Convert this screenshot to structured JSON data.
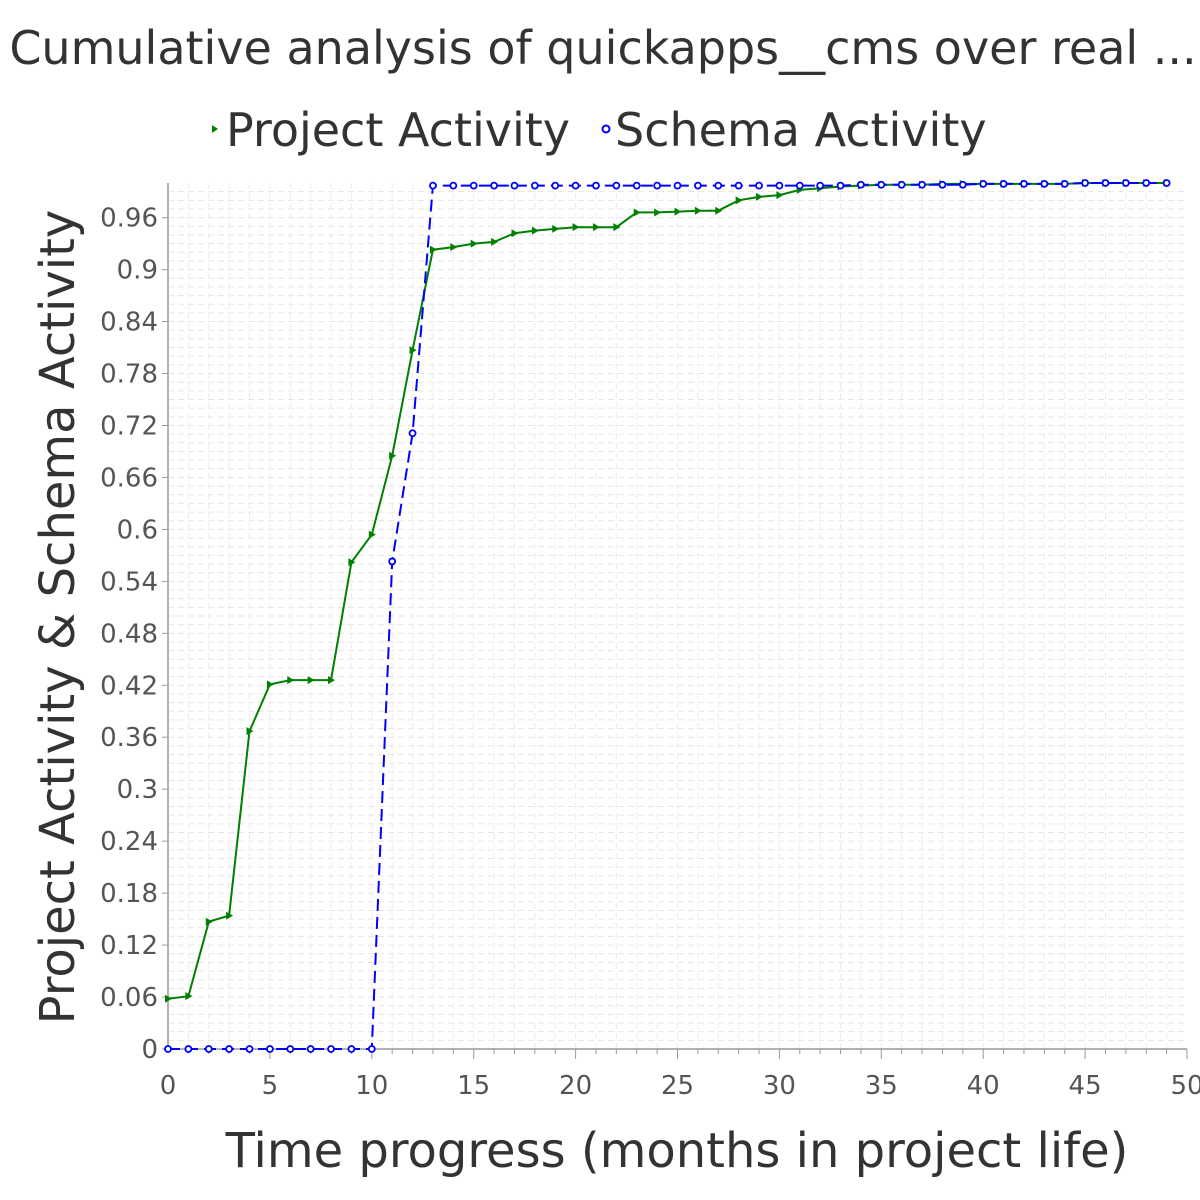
{
  "chart_data": {
    "type": "line",
    "title": "Cumulative analysis of quickapps__cms over real ...",
    "xlabel": "Time progress (months in project life)",
    "ylabel": "Project Activity & Schema Activity",
    "xlim": [
      0,
      50
    ],
    "ylim": [
      0,
      1.0
    ],
    "x_ticks": [
      "0",
      "5",
      "10",
      "15",
      "20",
      "25",
      "30",
      "35",
      "40",
      "45",
      "50"
    ],
    "y_ticks": [
      "0",
      "0.06",
      "0.12",
      "0.18",
      "0.24",
      "0.3",
      "0.36",
      "0.42",
      "0.48",
      "0.54",
      "0.6",
      "0.66",
      "0.72",
      "0.78",
      "0.84",
      "0.9",
      "0.96"
    ],
    "grid": true,
    "legend_position": "top",
    "series": [
      {
        "name": "Project Activity",
        "color": "#008000",
        "marker": "triangle-right",
        "line_style": "solid",
        "x": [
          0,
          1,
          2,
          3,
          4,
          5,
          6,
          7,
          8,
          9,
          10,
          11,
          12,
          13,
          14,
          15,
          16,
          17,
          18,
          19,
          20,
          21,
          22,
          23,
          24,
          25,
          26,
          27,
          28,
          29,
          30,
          31,
          32,
          33,
          34,
          35,
          36,
          37,
          38,
          39,
          40,
          41,
          42,
          43,
          44,
          45,
          46,
          47,
          48,
          49
        ],
        "y": [
          0.058,
          0.061,
          0.147,
          0.154,
          0.367,
          0.421,
          0.426,
          0.426,
          0.426,
          0.562,
          0.594,
          0.685,
          0.807,
          0.923,
          0.926,
          0.93,
          0.932,
          0.942,
          0.945,
          0.947,
          0.949,
          0.949,
          0.949,
          0.966,
          0.966,
          0.967,
          0.968,
          0.968,
          0.98,
          0.984,
          0.986,
          0.992,
          0.994,
          0.996,
          0.997,
          0.998,
          0.998,
          0.998,
          0.999,
          0.999,
          0.999,
          0.999,
          0.999,
          0.999,
          0.999,
          1.0,
          1.0,
          1.0,
          1.0,
          1.0
        ]
      },
      {
        "name": "Schema Activity",
        "color": "#0000ff",
        "marker": "circle",
        "line_style": "dashed",
        "x": [
          0,
          1,
          2,
          3,
          4,
          5,
          6,
          7,
          8,
          9,
          10,
          11,
          12,
          13,
          14,
          15,
          16,
          17,
          18,
          19,
          20,
          21,
          22,
          23,
          24,
          25,
          26,
          27,
          28,
          29,
          30,
          31,
          32,
          33,
          34,
          35,
          36,
          37,
          38,
          39,
          40,
          41,
          42,
          43,
          44,
          45,
          46,
          47,
          48,
          49
        ],
        "y": [
          0,
          0,
          0,
          0,
          0,
          0,
          0,
          0,
          0,
          0,
          0,
          0.563,
          0.711,
          0.997,
          0.997,
          0.997,
          0.997,
          0.997,
          0.997,
          0.997,
          0.997,
          0.997,
          0.997,
          0.997,
          0.997,
          0.997,
          0.997,
          0.997,
          0.997,
          0.997,
          0.997,
          0.997,
          0.997,
          0.997,
          0.998,
          0.998,
          0.998,
          0.998,
          0.998,
          0.998,
          0.999,
          0.999,
          0.999,
          0.999,
          0.999,
          1.0,
          1.0,
          1.0,
          1.0,
          1.0
        ]
      }
    ]
  }
}
